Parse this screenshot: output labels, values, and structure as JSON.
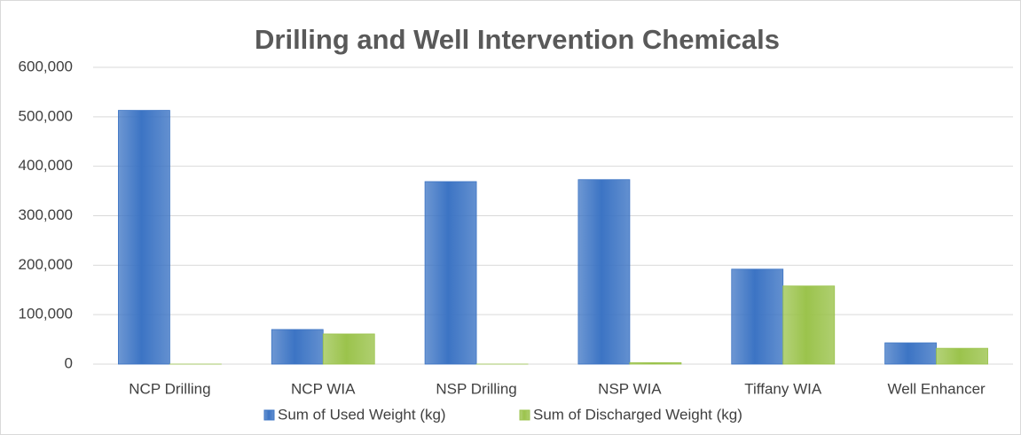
{
  "chart_data": {
    "type": "bar",
    "title": "Drilling and Well Intervention Chemicals",
    "categories": [
      "NCP Drilling",
      "NCP WIA",
      "NSP Drilling",
      "NSP WIA",
      "Tiffany WIA",
      "Well Enhancer"
    ],
    "series": [
      {
        "name": "Sum of Used Weight (kg)",
        "color": "#3c74c4",
        "values": [
          513000,
          70000,
          369000,
          373000,
          192000,
          43000
        ]
      },
      {
        "name": "Sum of Discharged Weight (kg)",
        "color": "#9bc34c",
        "values": [
          0,
          61000,
          0,
          3000,
          158000,
          32000
        ]
      }
    ],
    "ylim": [
      0,
      600000
    ],
    "yticks": [
      0,
      {
        "value": 100000,
        "label": "100,000"
      },
      {
        "value": 200000,
        "label": "200,000"
      },
      {
        "value": 300000,
        "label": "300,000"
      },
      {
        "value": 400000,
        "label": "400,000"
      },
      {
        "value": 500000,
        "label": "500,000"
      },
      {
        "value": 600000,
        "label": "600,000"
      }
    ],
    "grid": true,
    "legend": "bottom"
  }
}
